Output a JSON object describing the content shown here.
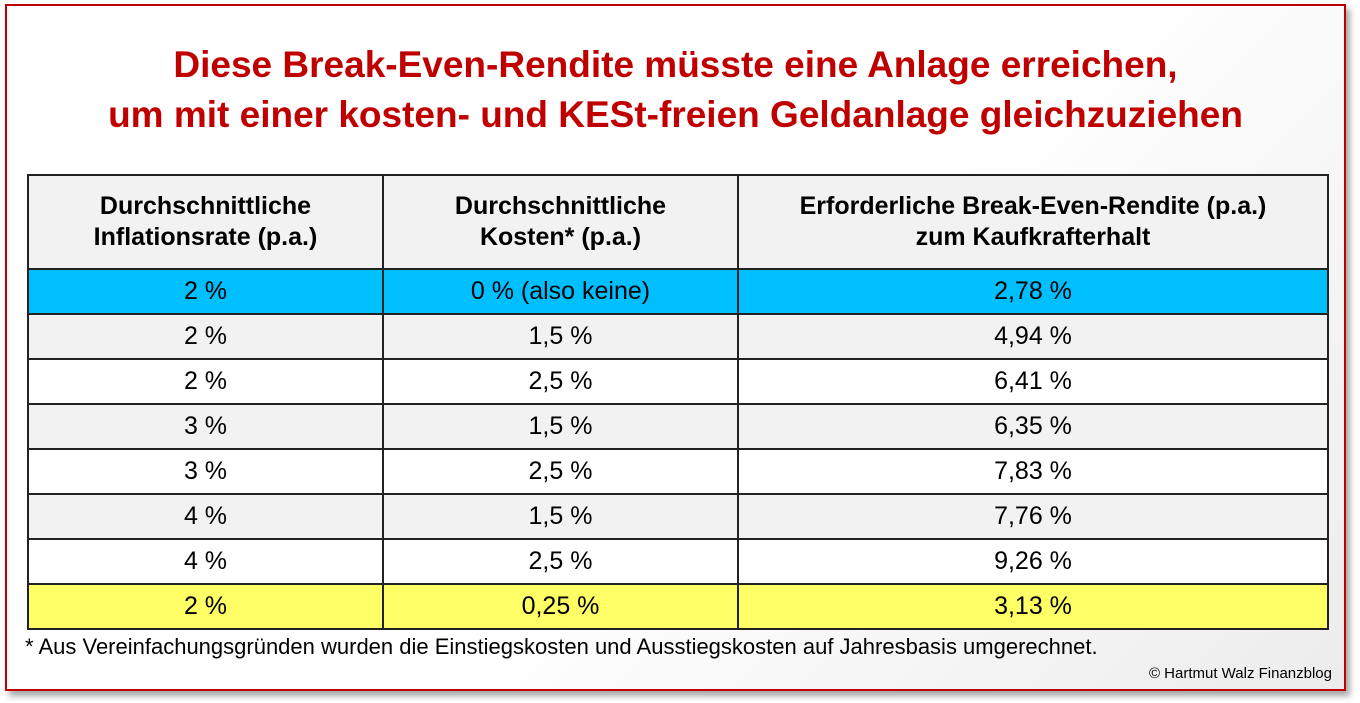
{
  "title": {
    "line1": "Diese Break-Even-Rendite müsste eine Anlage erreichen,",
    "line2": "um mit einer kosten- und KESt-freien Geldanlage gleichzuziehen"
  },
  "table": {
    "headers": [
      [
        "Durchschnittliche",
        "Inflationsrate (p.a.)"
      ],
      [
        "Durchschnittliche",
        "Kosten* (p.a.)"
      ],
      [
        "Erforderliche Break-Even-Rendite (p.a.)",
        "zum Kaufkrafterhalt"
      ]
    ],
    "rows": [
      {
        "cells": [
          "2 %",
          "0 % (also keine)",
          "2,78 %"
        ],
        "highlight": "#00bfff"
      },
      {
        "cells": [
          "2 %",
          "1,5 %",
          "4,94 %"
        ]
      },
      {
        "cells": [
          "2 %",
          "2,5 %",
          "6,41 %"
        ]
      },
      {
        "cells": [
          "3 %",
          "1,5 %",
          "6,35 %"
        ]
      },
      {
        "cells": [
          "3 %",
          "2,5 %",
          "7,83 %"
        ]
      },
      {
        "cells": [
          "4 %",
          "1,5 %",
          "7,76 %"
        ]
      },
      {
        "cells": [
          "4 %",
          "2,5 %",
          "9,26 %"
        ]
      },
      {
        "cells": [
          "2 %",
          "0,25 %",
          "3,13 %"
        ],
        "highlight": "#ffff66"
      }
    ]
  },
  "footnote": "* Aus Vereinfachungsgründen wurden die Einstiegskosten und Ausstiegskosten auf Jahresbasis umgerechnet.",
  "copyright": "© Hartmut  Walz Finanzblog",
  "colors": {
    "title": "#c00000",
    "border": "#c00000"
  }
}
